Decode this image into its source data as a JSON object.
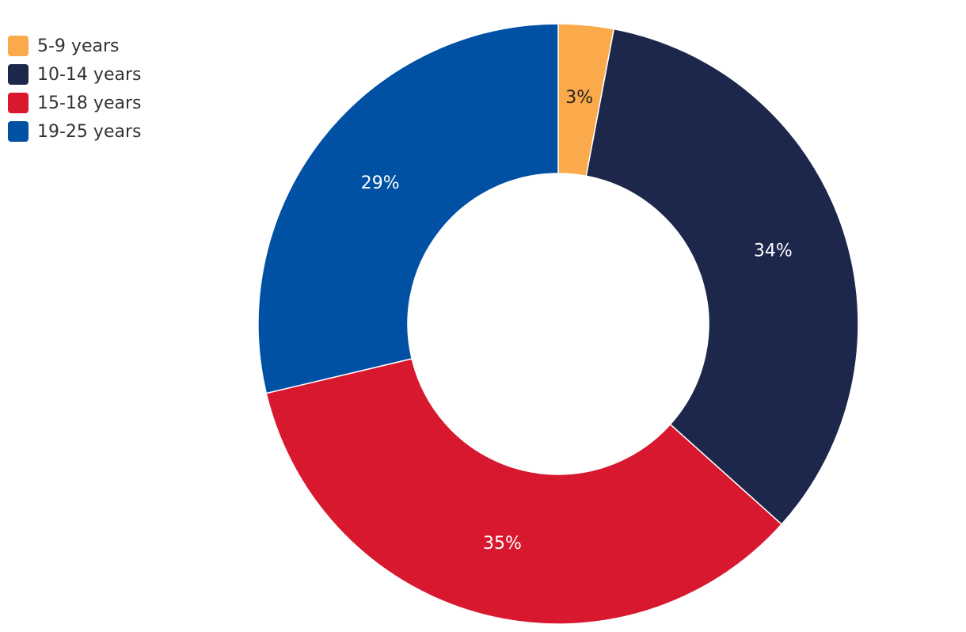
{
  "chart_data": {
    "type": "pie",
    "variant": "donut",
    "legend_position": "top-left",
    "categories": [
      "5-9 years",
      "10-14 years",
      "15-18 years",
      "19-25 years"
    ],
    "values": [
      3,
      34,
      35,
      29
    ],
    "data_labels": [
      "3%",
      "34%",
      "35%",
      "29%"
    ],
    "colors": [
      "#FBAA4B",
      "#1C274B",
      "#D8182F",
      "#0050A4"
    ],
    "label_colors": [
      "#222222",
      "#ffffff",
      "#ffffff",
      "#ffffff"
    ]
  }
}
